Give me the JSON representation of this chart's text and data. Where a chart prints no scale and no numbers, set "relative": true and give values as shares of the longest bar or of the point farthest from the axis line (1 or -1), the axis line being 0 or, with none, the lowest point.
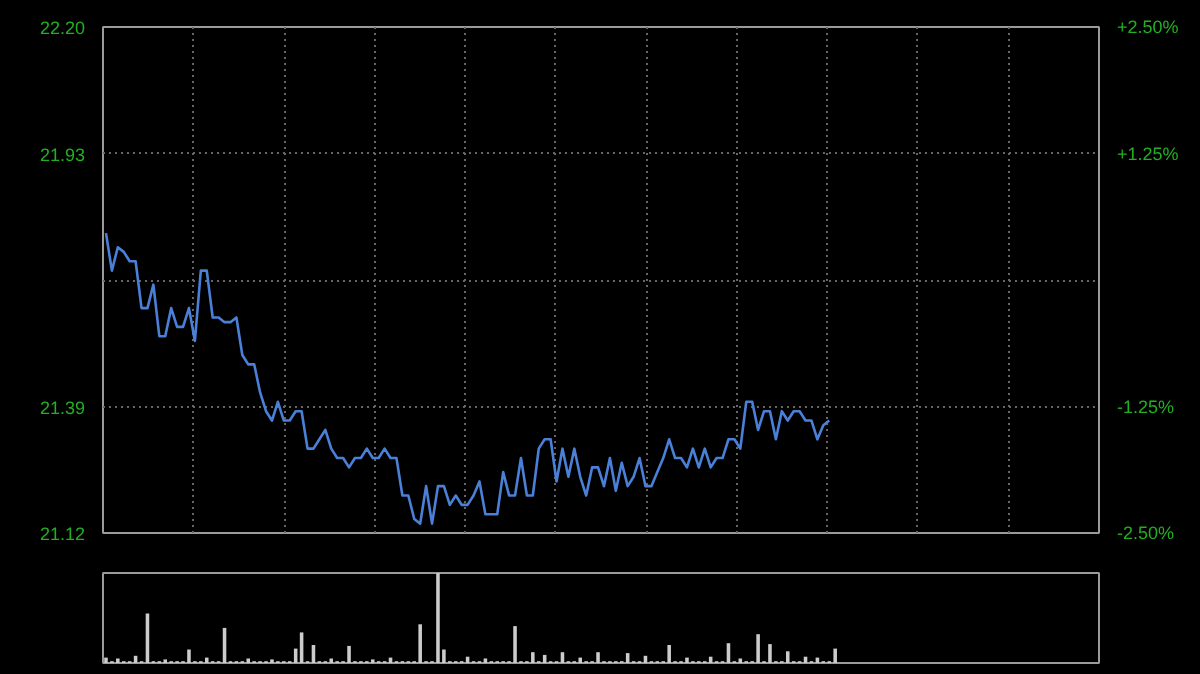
{
  "chart_data": [
    {
      "type": "line",
      "grid": true,
      "tick_labels": "y",
      "categories": [
        null,
        null,
        null,
        null,
        null,
        null,
        null,
        null,
        null,
        null,
        null,
        null,
        null,
        null,
        null,
        null,
        null,
        null,
        null,
        null,
        null,
        null,
        null,
        null,
        null,
        null,
        null,
        null,
        null,
        null,
        null,
        null,
        null,
        null,
        null,
        null,
        null,
        null,
        null,
        null,
        null,
        null,
        null,
        null,
        null,
        null,
        null,
        null,
        null,
        null,
        null,
        null,
        null,
        null,
        null,
        null,
        null,
        null,
        null,
        null,
        null,
        null,
        null,
        null,
        null,
        null,
        null,
        null,
        null,
        null,
        null,
        null,
        null,
        null,
        null,
        null,
        null,
        null,
        null,
        null,
        null,
        null,
        null,
        null,
        null,
        null,
        null,
        null,
        null,
        null,
        null,
        null,
        null,
        null,
        null,
        null,
        null,
        null,
        null,
        null,
        null,
        null,
        null,
        null,
        null,
        null,
        null,
        null,
        null,
        null,
        null,
        null,
        null,
        null,
        null,
        null,
        null,
        null,
        null,
        null,
        null,
        null,
        null,
        null,
        null,
        null,
        null,
        null,
        null,
        null,
        null,
        null,
        null,
        null,
        null,
        null,
        null,
        null,
        null,
        null,
        null,
        null,
        null,
        null,
        null,
        null,
        null,
        null,
        null,
        null,
        null,
        null,
        null,
        null,
        null,
        null,
        null,
        null,
        null,
        null,
        null,
        null,
        null,
        null,
        null,
        null,
        null,
        null
      ],
      "ylim": [
        21.12,
        22.2
      ],
      "yticks": [
        {
          "value": 22.2,
          "label": "22.20"
        },
        {
          "value": 21.93,
          "label": "21.93"
        },
        {
          "value": 21.66,
          "label": null
        },
        {
          "value": 21.39,
          "label": "21.39"
        },
        {
          "value": 21.12,
          "label": "21.12"
        }
      ],
      "y2lim": [
        -2.5,
        2.5
      ],
      "y2ticks": [
        {
          "value": 2.5,
          "label": "+2.50%"
        },
        {
          "value": 1.25,
          "label": "+1.25%"
        },
        {
          "value": -1.25,
          "label": "-1.25%"
        },
        {
          "value": -2.5,
          "label": "-2.50%"
        }
      ],
      "series": [
        {
          "color": "#4a80d8",
          "values": [
            21.76,
            21.68,
            21.73,
            21.72,
            21.7,
            21.7,
            21.6,
            21.6,
            21.65,
            21.54,
            21.54,
            21.6,
            21.56,
            21.56,
            21.6,
            21.53,
            21.68,
            21.68,
            21.58,
            21.58,
            21.57,
            21.57,
            21.58,
            21.5,
            21.48,
            21.48,
            21.42,
            21.38,
            21.36,
            21.4,
            21.36,
            21.36,
            21.38,
            21.38,
            21.3,
            21.3,
            21.32,
            21.34,
            21.3,
            21.28,
            21.28,
            21.26,
            21.28,
            21.28,
            21.3,
            21.28,
            21.28,
            21.3,
            21.28,
            21.28,
            21.2,
            21.2,
            21.15,
            21.14,
            21.22,
            21.14,
            21.22,
            21.22,
            21.18,
            21.2,
            21.18,
            21.18,
            21.2,
            21.23,
            21.16,
            21.16,
            21.16,
            21.25,
            21.2,
            21.2,
            21.28,
            21.2,
            21.2,
            21.3,
            21.32,
            21.32,
            21.23,
            21.3,
            21.24,
            21.3,
            21.24,
            21.2,
            21.26,
            21.26,
            21.22,
            21.28,
            21.21,
            21.27,
            21.22,
            21.24,
            21.28,
            21.22,
            21.22,
            21.25,
            21.28,
            21.32,
            21.28,
            21.28,
            21.26,
            21.3,
            21.26,
            21.3,
            21.26,
            21.28,
            21.28,
            21.32,
            21.32,
            21.3,
            21.4,
            21.4,
            21.34,
            21.38,
            21.38,
            21.32,
            21.38,
            21.36,
            21.38,
            21.38,
            21.36,
            21.36,
            21.32,
            21.35,
            21.36,
            null,
            null,
            null,
            null,
            null,
            null,
            null,
            null,
            null,
            null,
            null,
            null,
            null,
            null,
            null,
            null,
            null,
            null,
            null,
            null,
            null,
            null,
            null,
            null,
            null,
            null,
            null,
            null,
            null,
            null,
            null,
            null,
            null,
            null,
            null,
            null,
            null,
            null,
            null,
            null,
            null,
            null,
            null,
            null,
            null
          ]
        }
      ]
    },
    {
      "type": "bar",
      "relative": true,
      "grid": false,
      "tick_labels": false,
      "categories": [
        null,
        null,
        null,
        null,
        null,
        null,
        null,
        null,
        null,
        null,
        null,
        null,
        null,
        null,
        null,
        null,
        null,
        null,
        null,
        null,
        null,
        null,
        null,
        null,
        null,
        null,
        null,
        null,
        null,
        null,
        null,
        null,
        null,
        null,
        null,
        null,
        null,
        null,
        null,
        null,
        null,
        null,
        null,
        null,
        null,
        null,
        null,
        null,
        null,
        null,
        null,
        null,
        null,
        null,
        null,
        null,
        null,
        null,
        null,
        null,
        null,
        null,
        null,
        null,
        null,
        null,
        null,
        null,
        null,
        null,
        null,
        null,
        null,
        null,
        null,
        null,
        null,
        null,
        null,
        null,
        null,
        null,
        null,
        null,
        null,
        null,
        null,
        null,
        null,
        null,
        null,
        null,
        null,
        null,
        null,
        null,
        null,
        null,
        null,
        null,
        null,
        null,
        null,
        null,
        null,
        null,
        null,
        null,
        null,
        null,
        null,
        null,
        null,
        null,
        null,
        null,
        null,
        null,
        null,
        null,
        null,
        null,
        null,
        null,
        null,
        null,
        null,
        null,
        null,
        null,
        null,
        null,
        null,
        null,
        null,
        null,
        null,
        null,
        null,
        null,
        null,
        null,
        null,
        null,
        null,
        null,
        null,
        null,
        null,
        null,
        null,
        null,
        null,
        null,
        null,
        null,
        null,
        null,
        null,
        null,
        null,
        null,
        null,
        null,
        null,
        null,
        null,
        null
      ],
      "series": [
        {
          "color": "#cccccc",
          "values": [
            0.06,
            0.02,
            0.05,
            0.02,
            0.02,
            0.08,
            0.02,
            0.55,
            0.02,
            0.02,
            0.04,
            0.02,
            0.02,
            0.02,
            0.15,
            0.02,
            0.02,
            0.06,
            0.02,
            0.02,
            0.39,
            0.02,
            0.02,
            0.02,
            0.05,
            0.02,
            0.02,
            0.02,
            0.04,
            0.02,
            0.02,
            0.02,
            0.16,
            0.34,
            0.02,
            0.2,
            0.02,
            0.02,
            0.05,
            0.02,
            0.02,
            0.19,
            0.02,
            0.02,
            0.02,
            0.04,
            0.02,
            0.02,
            0.06,
            0.02,
            0.02,
            0.02,
            0.02,
            0.43,
            0.02,
            0.02,
            1,
            0.15,
            0.02,
            0.02,
            0.02,
            0.07,
            0.02,
            0.02,
            0.05,
            0.02,
            0.02,
            0.02,
            0.02,
            0.41,
            0.02,
            0.02,
            0.12,
            0.02,
            0.09,
            0.02,
            0.02,
            0.12,
            0.02,
            0.02,
            0.06,
            0.02,
            0.02,
            0.12,
            0.02,
            0.02,
            0.02,
            0.02,
            0.11,
            0.02,
            0.02,
            0.08,
            0.02,
            0.02,
            0.02,
            0.2,
            0.02,
            0.02,
            0.06,
            0.02,
            0.02,
            0.02,
            0.07,
            0.02,
            0.02,
            0.22,
            0.02,
            0.05,
            0.02,
            0.02,
            0.32,
            0.02,
            0.21,
            0.02,
            0.02,
            0.13,
            0.02,
            0.02,
            0.07,
            0.02,
            0.06,
            0.02,
            0.02,
            0.16,
            null,
            null,
            null,
            null,
            null,
            null,
            null,
            null,
            null,
            null,
            null,
            null,
            null,
            null,
            null,
            null,
            null,
            null,
            null,
            null,
            null,
            null,
            null,
            null,
            null,
            null,
            null,
            null,
            null,
            null,
            null,
            null,
            null,
            null,
            null,
            null,
            null,
            null,
            null,
            null,
            null,
            null,
            null,
            null
          ]
        }
      ]
    }
  ]
}
